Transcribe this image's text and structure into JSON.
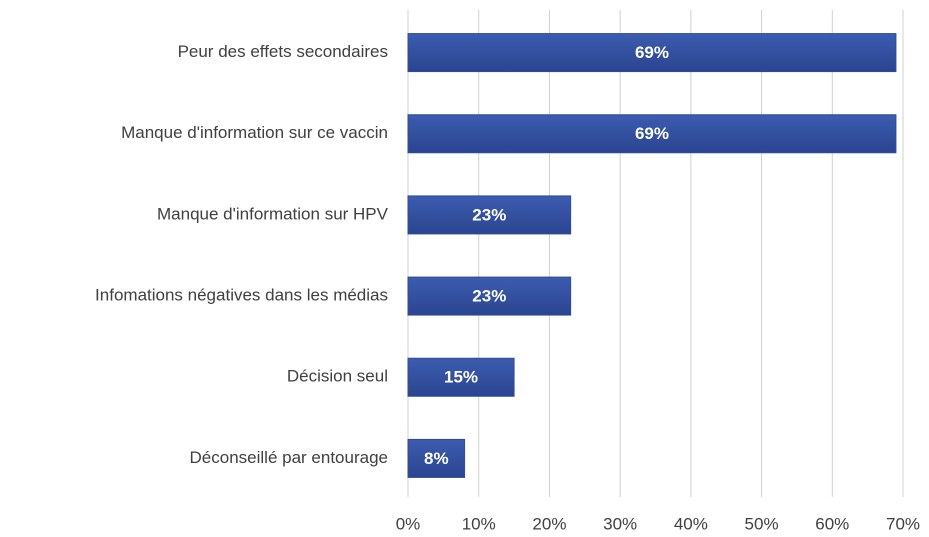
{
  "chart_data": {
    "type": "hbar",
    "categories": [
      "Peur des effets secondaires",
      "Manque d'information sur ce vaccin",
      "Manque d'information sur HPV",
      "Infomations négatives dans les médias",
      "Décision seul",
      "Déconseillé par entourage"
    ],
    "values": [
      69,
      69,
      23,
      23,
      15,
      8
    ],
    "value_labels": [
      "69%",
      "69%",
      "23%",
      "23%",
      "15%",
      "8%"
    ],
    "color": "#2f4b9c",
    "xlim": [
      0,
      70
    ],
    "xticks": [
      {
        "value": 0,
        "label": "0%"
      },
      {
        "value": 10,
        "label": "10%"
      },
      {
        "value": 20,
        "label": "20%"
      },
      {
        "value": 30,
        "label": "30%"
      },
      {
        "value": 40,
        "label": "40%"
      },
      {
        "value": 50,
        "label": "50%"
      },
      {
        "value": 60,
        "label": "60%"
      },
      {
        "value": 70,
        "label": "70%"
      }
    ],
    "grid": true
  }
}
